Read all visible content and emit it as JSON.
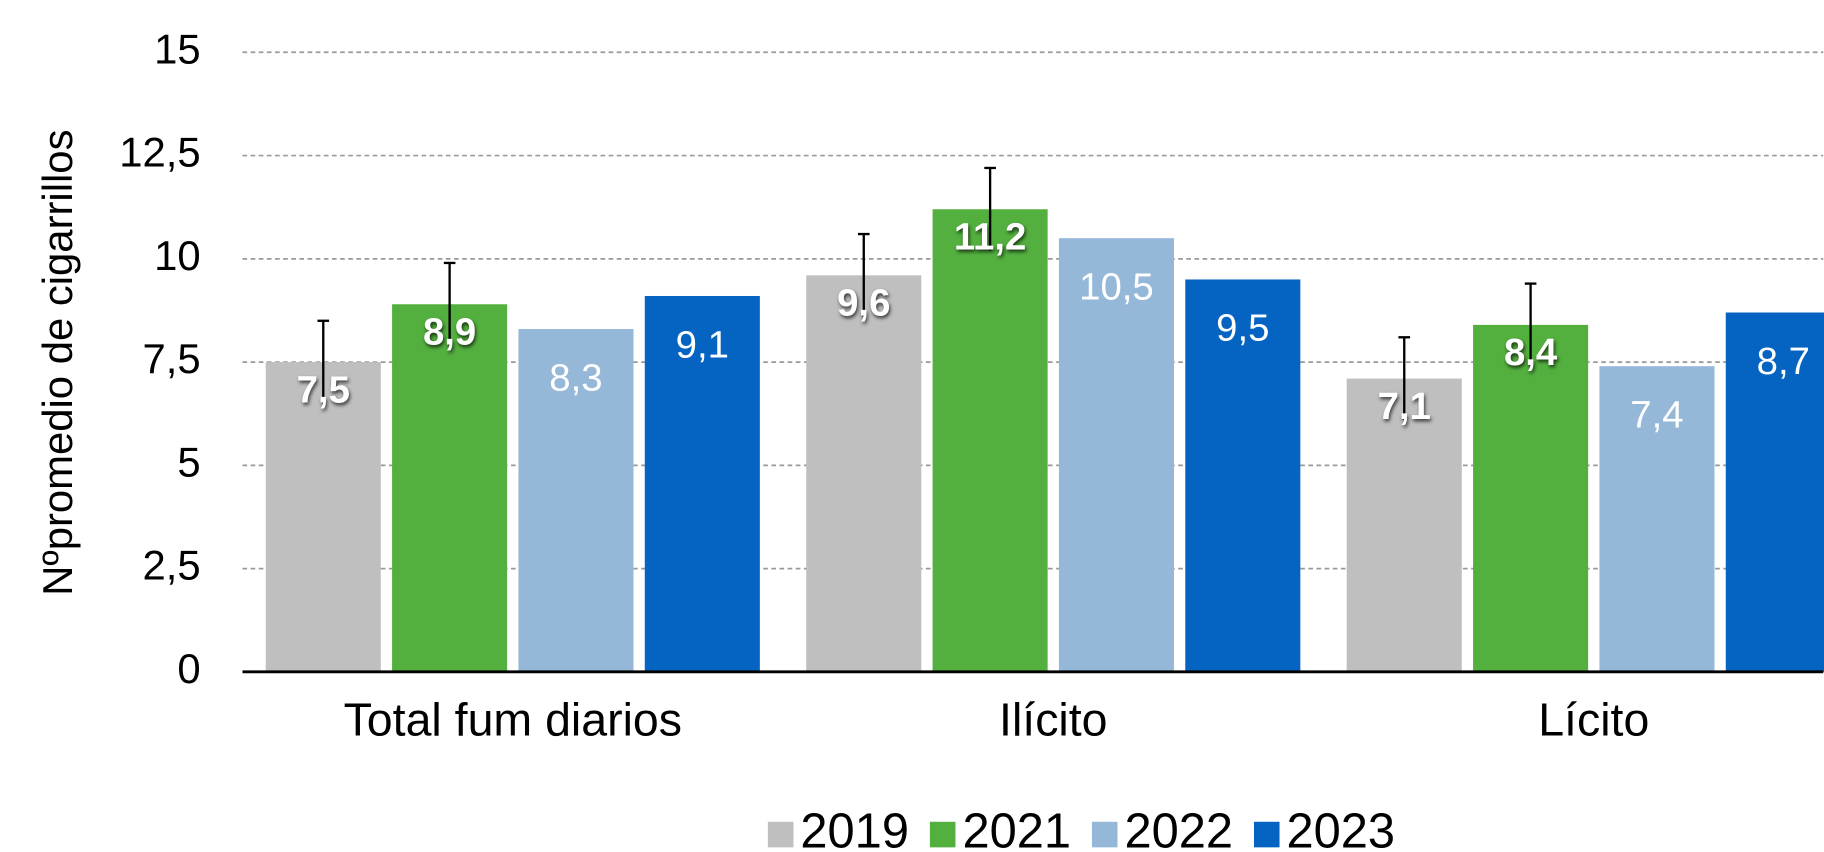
{
  "chart_data": {
    "type": "bar",
    "y_label": "Nºpromedio de cigarrillos",
    "categories": [
      "Total fum diarios",
      "Ilícito",
      "Lícito"
    ],
    "series": [
      {
        "name": "2019",
        "color": "#bfbfbf",
        "values": [
          7.5,
          9.6,
          7.1
        ],
        "value_labels": [
          "7,5",
          "9,6",
          "7,1"
        ],
        "errors": [
          1,
          1,
          1
        ]
      },
      {
        "name": "2021",
        "color": "#53b03f",
        "values": [
          8.9,
          11.2,
          8.4
        ],
        "value_labels": [
          "8,9",
          "11,2",
          "8,4"
        ],
        "errors": [
          1,
          1,
          1
        ]
      },
      {
        "name": "2022",
        "color": "#95b8d9",
        "values": [
          8.3,
          10.5,
          7.4
        ],
        "value_labels": [
          "8,3",
          "10,5",
          "7,4"
        ]
      },
      {
        "name": "2023",
        "color": "#0563c1",
        "values": [
          9.1,
          9.5,
          8.7
        ],
        "value_labels": [
          "9,1",
          "9,5",
          "8,7"
        ]
      }
    ],
    "ylim": [
      0,
      15
    ],
    "yticks": [
      0,
      {
        "value": 2.5,
        "label": "2,5"
      },
      5,
      {
        "value": 7.5,
        "label": "7,5"
      },
      10,
      {
        "value": 12.5,
        "label": "12,5"
      },
      15
    ],
    "grid": true,
    "legend": "bottom"
  }
}
